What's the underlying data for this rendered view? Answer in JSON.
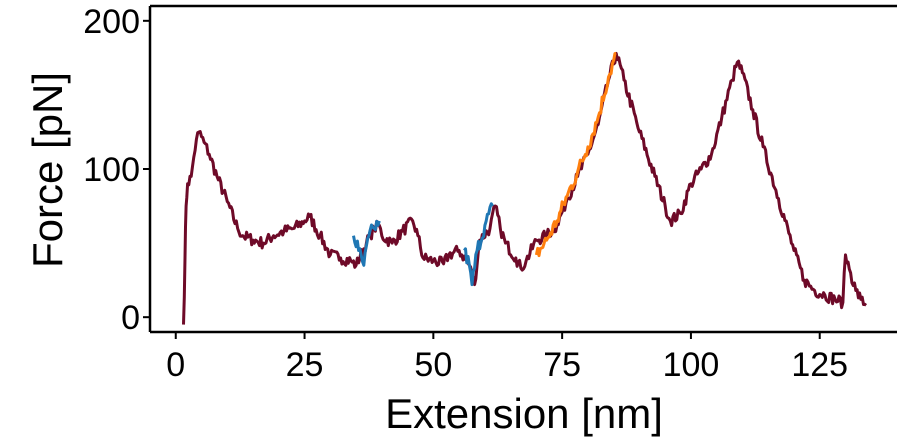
{
  "chart_data": {
    "type": "line",
    "title": "",
    "xlabel": "Extension [nm]",
    "ylabel": "Force [pN]",
    "xlim": [
      -5,
      140
    ],
    "ylim": [
      -10,
      210
    ],
    "xticks": [
      0,
      25,
      50,
      75,
      100,
      125
    ],
    "yticks": [
      0,
      100,
      200
    ],
    "grid": false,
    "legend": "none",
    "colors": {
      "trace": "#6e0a28",
      "highlight_a": "#1f77b4",
      "highlight_b": "#ff7f0e",
      "axes": "#000000"
    },
    "trace_points": [
      [
        1.5,
        -5
      ],
      [
        1.8,
        40
      ],
      [
        2.0,
        75
      ],
      [
        2.3,
        90
      ],
      [
        3.0,
        95
      ],
      [
        3.5,
        108
      ],
      [
        4.0,
        120
      ],
      [
        4.5,
        125
      ],
      [
        5.5,
        118
      ],
      [
        6.5,
        110
      ],
      [
        8.0,
        95
      ],
      [
        10.0,
        78
      ],
      [
        12.0,
        60
      ],
      [
        13.0,
        55
      ],
      [
        15.0,
        52
      ],
      [
        17.0,
        50
      ],
      [
        19.0,
        55
      ],
      [
        21.0,
        58
      ],
      [
        23.0,
        60
      ],
      [
        25.0,
        65
      ],
      [
        26.0,
        68
      ],
      [
        28.0,
        55
      ],
      [
        30.0,
        42
      ],
      [
        32.0,
        40
      ],
      [
        34.0,
        38
      ],
      [
        35.0,
        35
      ],
      [
        37.0,
        50
      ],
      [
        38.5,
        60
      ],
      [
        39.5,
        62
      ],
      [
        40.0,
        55
      ],
      [
        42.0,
        50
      ],
      [
        44.0,
        58
      ],
      [
        46.0,
        65
      ],
      [
        47.0,
        55
      ],
      [
        48.0,
        40
      ],
      [
        50.0,
        38
      ],
      [
        52.0,
        36
      ],
      [
        53.0,
        42
      ],
      [
        55.0,
        45
      ],
      [
        57.0,
        35
      ],
      [
        58.0,
        22
      ],
      [
        59.0,
        52
      ],
      [
        61.0,
        60
      ],
      [
        62.0,
        75
      ],
      [
        63.0,
        60
      ],
      [
        64.0,
        50
      ],
      [
        66.0,
        40
      ],
      [
        67.0,
        33
      ],
      [
        68.0,
        38
      ],
      [
        70.0,
        52
      ],
      [
        72.0,
        55
      ],
      [
        74.0,
        62
      ],
      [
        76.0,
        80
      ],
      [
        78.0,
        95
      ],
      [
        80.0,
        110
      ],
      [
        82.0,
        130
      ],
      [
        84.0,
        160
      ],
      [
        85.5,
        178
      ],
      [
        87.0,
        160
      ],
      [
        90.0,
        125
      ],
      [
        93.0,
        95
      ],
      [
        95.0,
        75
      ],
      [
        96.0,
        65
      ],
      [
        98.0,
        70
      ],
      [
        100.0,
        90
      ],
      [
        102.0,
        100
      ],
      [
        104.0,
        110
      ],
      [
        106.0,
        135
      ],
      [
        108.0,
        160
      ],
      [
        109.0,
        172
      ],
      [
        110.0,
        165
      ],
      [
        112.0,
        140
      ],
      [
        114.0,
        115
      ],
      [
        117.0,
        80
      ],
      [
        120.0,
        45
      ],
      [
        122.0,
        25
      ],
      [
        124.0,
        18
      ],
      [
        126.0,
        15
      ],
      [
        128.0,
        12
      ],
      [
        129.5,
        10
      ],
      [
        130.0,
        42
      ],
      [
        131.0,
        30
      ],
      [
        132.0,
        18
      ],
      [
        133.0,
        12
      ],
      [
        134.0,
        8
      ]
    ],
    "highlight_segments": [
      {
        "color_key": "highlight_a",
        "points": [
          [
            34.5,
            55
          ],
          [
            35.5,
            45
          ],
          [
            36.5,
            35
          ],
          [
            37.5,
            55
          ],
          [
            38.5,
            60
          ],
          [
            39.5,
            65
          ]
        ]
      },
      {
        "color_key": "highlight_a",
        "points": [
          [
            56.0,
            45
          ],
          [
            57.0,
            35
          ],
          [
            57.5,
            22
          ],
          [
            58.5,
            45
          ],
          [
            60.0,
            62
          ],
          [
            61.5,
            75
          ]
        ]
      },
      {
        "color_key": "highlight_b",
        "points": [
          [
            70.0,
            42
          ],
          [
            72.0,
            52
          ],
          [
            74.0,
            65
          ],
          [
            76.0,
            82
          ],
          [
            78.0,
            98
          ],
          [
            80.0,
            115
          ],
          [
            82.0,
            135
          ],
          [
            84.0,
            162
          ],
          [
            85.5,
            178
          ]
        ]
      }
    ]
  }
}
